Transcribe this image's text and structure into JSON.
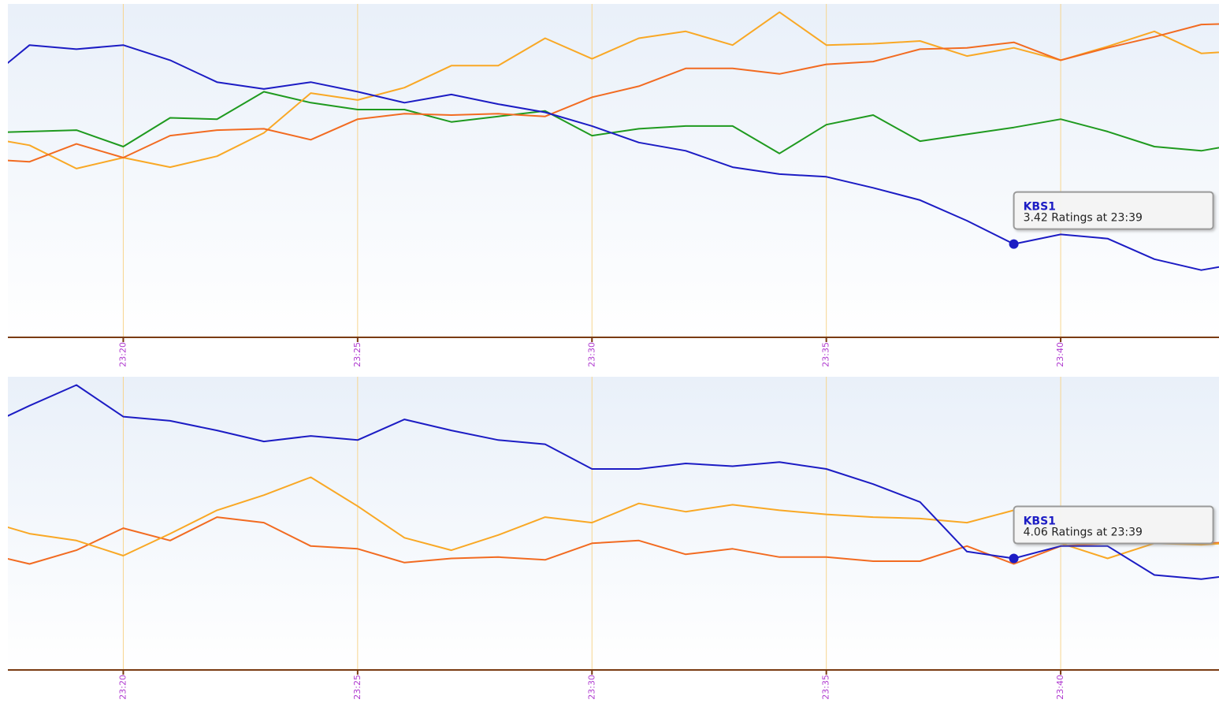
{
  "chart_data": [
    {
      "type": "line",
      "x": [
        "23:17",
        "23:18",
        "23:19",
        "23:20",
        "23:21",
        "23:22",
        "23:23",
        "23:24",
        "23:25",
        "23:26",
        "23:27",
        "23:28",
        "23:29",
        "23:30",
        "23:31",
        "23:32",
        "23:33",
        "23:34",
        "23:35",
        "23:36",
        "23:37",
        "23:38",
        "23:39",
        "23:40",
        "23:41",
        "23:42",
        "23:43",
        "23:44"
      ],
      "xlim": [
        "23:17",
        "23:44"
      ],
      "xticks": [
        "23:20",
        "23:25",
        "23:30",
        "23:35",
        "23:40"
      ],
      "ylim": [
        2.74,
        5.17
      ],
      "grid": true,
      "series": [
        {
          "name": "KBS1",
          "color": "#1c1cc4",
          "values": [
            4.59,
            4.87,
            4.84,
            4.87,
            4.76,
            4.6,
            4.55,
            4.6,
            4.53,
            4.45,
            4.51,
            4.44,
            4.38,
            4.28,
            4.16,
            4.1,
            3.98,
            3.93,
            3.91,
            3.83,
            3.74,
            3.59,
            3.42,
            3.49,
            3.46,
            3.31,
            3.23,
            3.29
          ]
        },
        {
          "color": "#f26b21",
          "values": [
            4.04,
            4.02,
            4.15,
            4.05,
            4.21,
            4.25,
            4.26,
            4.18,
            4.33,
            4.37,
            4.36,
            4.37,
            4.35,
            4.49,
            4.57,
            4.7,
            4.7,
            4.66,
            4.73,
            4.75,
            4.84,
            4.85,
            4.89,
            4.76,
            4.85,
            4.93,
            5.02,
            5.03
          ]
        },
        {
          "color": "#f9a825",
          "values": [
            4.2,
            4.14,
            3.97,
            4.05,
            3.98,
            4.06,
            4.23,
            4.52,
            4.47,
            4.56,
            4.72,
            4.72,
            4.92,
            4.77,
            4.92,
            4.97,
            4.87,
            5.11,
            4.87,
            4.88,
            4.9,
            4.79,
            4.85,
            4.76,
            4.86,
            4.97,
            4.81,
            4.83
          ]
        },
        {
          "color": "#1f9a1f",
          "values": [
            4.23,
            4.24,
            4.25,
            4.13,
            4.34,
            4.33,
            4.53,
            4.45,
            4.4,
            4.4,
            4.31,
            4.35,
            4.39,
            4.21,
            4.26,
            4.28,
            4.28,
            4.08,
            4.29,
            4.36,
            4.17,
            4.22,
            4.27,
            4.33,
            4.24,
            4.13,
            4.1,
            4.16
          ]
        }
      ],
      "tooltip": {
        "text": "3.42 Ratings at 23:39"
      }
    },
    {
      "type": "line",
      "x": [
        "23:17",
        "23:18",
        "23:19",
        "23:20",
        "23:21",
        "23:22",
        "23:23",
        "23:24",
        "23:25",
        "23:26",
        "23:27",
        "23:28",
        "23:29",
        "23:30",
        "23:31",
        "23:32",
        "23:33",
        "23:34",
        "23:35",
        "23:36",
        "23:37",
        "23:38",
        "23:39",
        "23:40",
        "23:41",
        "23:42",
        "23:43",
        "23:44"
      ],
      "xlim": [
        "23:17",
        "23:44"
      ],
      "xticks": [
        "23:20",
        "23:25",
        "23:30",
        "23:35",
        "23:40"
      ],
      "ylim": [
        3.25,
        5.38
      ],
      "grid": true,
      "series": [
        {
          "name": "KBS1",
          "color": "#1c1cc4",
          "values": [
            5.01,
            5.17,
            5.32,
            5.09,
            5.06,
            4.99,
            4.91,
            4.95,
            4.92,
            5.07,
            4.99,
            4.92,
            4.89,
            4.71,
            4.71,
            4.75,
            4.73,
            4.76,
            4.71,
            4.6,
            4.47,
            4.11,
            4.06,
            4.15,
            4.15,
            3.94,
            3.91,
            3.95
          ]
        },
        {
          "color": "#f9a825",
          "values": [
            4.34,
            4.24,
            4.19,
            4.08,
            4.24,
            4.41,
            4.52,
            4.65,
            4.44,
            4.21,
            4.12,
            4.23,
            4.36,
            4.32,
            4.46,
            4.4,
            4.45,
            4.41,
            4.38,
            4.36,
            4.35,
            4.32,
            4.41,
            4.17,
            4.06,
            4.17,
            4.16,
            4.18
          ]
        },
        {
          "color": "#f26b21",
          "values": [
            4.1,
            4.02,
            4.12,
            4.28,
            4.19,
            4.36,
            4.32,
            4.15,
            4.13,
            4.03,
            4.06,
            4.07,
            4.05,
            4.17,
            4.19,
            4.09,
            4.13,
            4.07,
            4.07,
            4.04,
            4.04,
            4.15,
            4.02,
            4.15,
            4.17,
            4.18,
            4.17,
            4.18
          ]
        }
      ],
      "tooltip": {
        "text": "4.06 Ratings at 23:39"
      }
    }
  ]
}
